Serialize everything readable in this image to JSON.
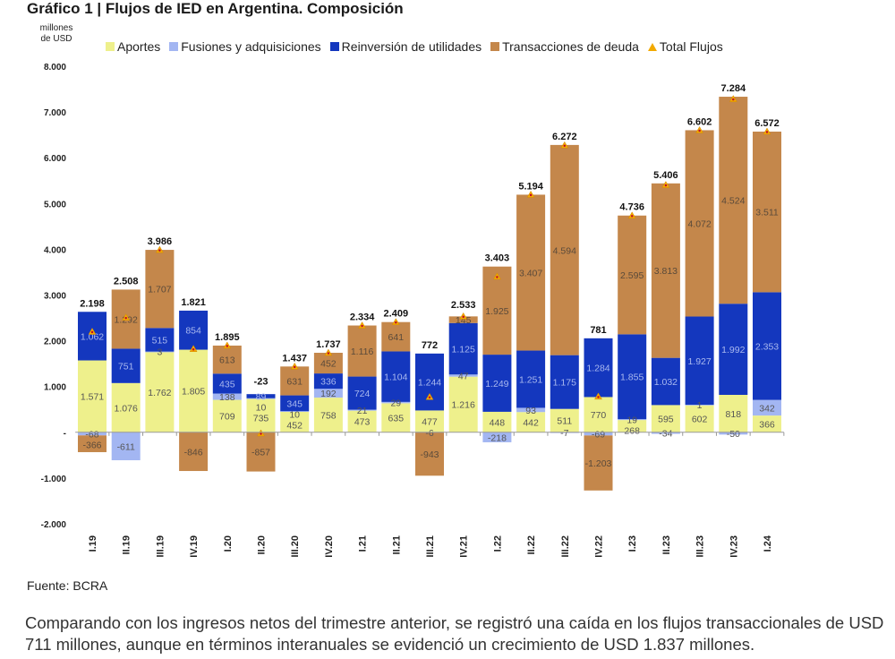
{
  "title": "Gráfico 1 | Flujos de IED en Argentina. Composición",
  "source": "Fuente: BCRA",
  "paragraph": "Comparando con los ingresos netos del trimestre anterior, se registró una caída en los flujos transaccionales de USD 711 millones, aunque en términos interanuales se evidenció un crecimiento de USD 1.837 millones.",
  "chart_data": {
    "type": "bar",
    "stacked": true,
    "title": "Gráfico 1 | Flujos de IED en Argentina. Composición",
    "ylabel": "millones de USD",
    "xlabel": "",
    "ylim": [
      -2000,
      8000
    ],
    "yticks": [
      -2000,
      -1000,
      0,
      1000,
      2000,
      3000,
      4000,
      5000,
      6000,
      7000,
      8000
    ],
    "ytick_labels": [
      "-2.000",
      "-1.000",
      "-",
      "1.000",
      "2.000",
      "3.000",
      "4.000",
      "5.000",
      "6.000",
      "7.000",
      "8.000"
    ],
    "grid": false,
    "legend_position": "top",
    "categories": [
      "I.19",
      "II.19",
      "III.19",
      "IV.19",
      "I.20",
      "II.20",
      "III.20",
      "IV.20",
      "I.21",
      "II.21",
      "III.21",
      "IV.21",
      "I.22",
      "II.22",
      "III.22",
      "IV.22",
      "I.23",
      "II.23",
      "III.23",
      "IV.23",
      "I.24"
    ],
    "series": [
      {
        "name": "Aportes",
        "color": "#eef08c",
        "values": [
          1571,
          1076,
          1762,
          1805,
          709,
          735,
          452,
          758,
          473,
          635,
          477,
          1216,
          448,
          442,
          511,
          770,
          268,
          595,
          602,
          818,
          366
        ]
      },
      {
        "name": "Fusiones y adquisiciones",
        "color": "#a3b6f2",
        "values": [
          -68,
          -611,
          3,
          null,
          138,
          10,
          10,
          192,
          21,
          29,
          -6,
          47,
          -218,
          93,
          -7,
          -69,
          19,
          -34,
          1,
          -50,
          342
        ]
      },
      {
        "name": "Reinversión de utilidades",
        "color": "#1437be",
        "values": [
          1062,
          751,
          515,
          854,
          435,
          89,
          345,
          336,
          724,
          1104,
          1244,
          1125,
          1249,
          1251,
          1175,
          1284,
          1855,
          1032,
          1927,
          1992,
          2353
        ]
      },
      {
        "name": "Transacciones de deuda",
        "color": "#c4874b",
        "values": [
          -366,
          1292,
          1707,
          -846,
          613,
          -857,
          631,
          452,
          1116,
          641,
          -943,
          145,
          1925,
          3407,
          4594,
          -1203,
          2595,
          3813,
          4072,
          4524,
          3511
        ]
      }
    ],
    "total": {
      "name": "Total Flujos",
      "marker": "triangle",
      "color": "#f2a900",
      "values": [
        2198,
        2508,
        3986,
        1821,
        1895,
        -23,
        1437,
        1737,
        2334,
        2409,
        772,
        2533,
        3403,
        5194,
        6272,
        781,
        4736,
        5406,
        6602,
        7284,
        6572
      ]
    }
  }
}
